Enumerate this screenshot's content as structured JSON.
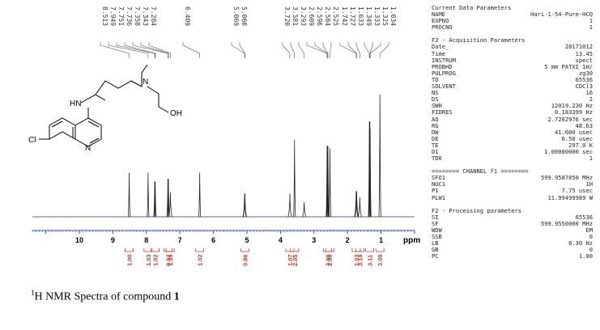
{
  "chart_data": {
    "type": "line",
    "xlabel": "ppm",
    "xlim": [
      11.4,
      0.0
    ],
    "x_ticks": [
      10,
      9,
      8,
      7,
      6,
      5,
      4,
      3,
      2,
      1
    ],
    "grid": false,
    "peak_labels": [
      "8.513",
      "7.949",
      "7.751",
      "7.736",
      "7.358",
      "7.343",
      "7.284",
      "6.409",
      "5.069",
      "5.060",
      "3.720",
      "3.581",
      "3.293",
      "2.609",
      "2.596",
      "2.584",
      "2.525",
      "1.742",
      "1.727",
      "1.633",
      "1.349",
      "1.333",
      "1.325",
      "1.034"
    ],
    "series": [
      {
        "x": [
          8.513,
          7.949,
          7.751,
          7.736,
          7.358,
          7.343,
          7.284,
          6.409,
          5.069,
          5.06,
          3.72,
          3.581,
          3.293,
          2.609,
          2.596,
          2.584,
          2.525,
          1.742,
          1.727,
          1.633,
          1.349,
          1.333,
          1.325,
          1.034
        ],
        "y": [
          0.36,
          0.36,
          0.29,
          0.29,
          0.31,
          0.31,
          0.2,
          0.36,
          0.19,
          0.19,
          0.19,
          0.63,
          0.12,
          0.58,
          0.58,
          0.58,
          0.56,
          0.21,
          0.21,
          0.16,
          0.78,
          0.78,
          0.72,
          1.0
        ]
      }
    ],
    "integrals": [
      {
        "x": 8.513,
        "label": "1.00"
      },
      {
        "x": 7.95,
        "label": "1.03"
      },
      {
        "x": 7.74,
        "label": "1.02"
      },
      {
        "x": 7.35,
        "label": "0.97"
      },
      {
        "x": 7.29,
        "label": "1.39"
      },
      {
        "x": 6.409,
        "label": "1.02"
      },
      {
        "x": 5.065,
        "label": "0.86"
      },
      {
        "x": 3.72,
        "label": "1.07"
      },
      {
        "x": 3.58,
        "label": "2.05"
      },
      {
        "x": 2.6,
        "label": "3.90"
      },
      {
        "x": 2.53,
        "label": "2.00"
      },
      {
        "x": 1.74,
        "label": "1.03"
      },
      {
        "x": 1.63,
        "label": "3.10"
      },
      {
        "x": 1.34,
        "label": "3.11"
      },
      {
        "x": 1.034,
        "label": "3.09"
      }
    ]
  },
  "structure": {
    "labels": {
      "hn": "HN",
      "n": "N",
      "oh": "OH",
      "cl": "Cl",
      "ring_n": "N"
    }
  },
  "params": {
    "current_header": "Current Data Parameters",
    "current": [
      {
        "key": "NAME",
        "value": "Hari-1-54-Pure-HCQ"
      },
      {
        "key": "EXPNO",
        "value": "1"
      },
      {
        "key": "PROCNO",
        "value": "1"
      }
    ],
    "acq_header": "F2 - Acquisition Parameters",
    "acq": [
      {
        "key": "Date_",
        "value": "20171012"
      },
      {
        "key": "Time",
        "value": "13.45"
      },
      {
        "key": "INSTRUM",
        "value": "spect"
      },
      {
        "key": "PROBHD",
        "value": "5 mm PATXI 1H/"
      },
      {
        "key": "PULPROG",
        "value": "zg30"
      },
      {
        "key": "TD",
        "value": "65536"
      },
      {
        "key": "SOLVENT",
        "value": "CDCl3"
      },
      {
        "key": "NS",
        "value": "16"
      },
      {
        "key": "DS",
        "value": "2"
      },
      {
        "key": "SWH",
        "value": "12019.230 Hz"
      },
      {
        "key": "FIDRES",
        "value": "0.183399 Hz"
      },
      {
        "key": "AQ",
        "value": "2.7262976 sec"
      },
      {
        "key": "RG",
        "value": "48.63"
      },
      {
        "key": "DW",
        "value": "41.600 usec"
      },
      {
        "key": "DE",
        "value": "6.50 usec"
      },
      {
        "key": "TE",
        "value": "297.0 K"
      },
      {
        "key": "D1",
        "value": "1.00000000 sec"
      },
      {
        "key": "TD0",
        "value": "1"
      }
    ],
    "channel_header": "======== CHANNEL f1 ========",
    "channel": [
      {
        "key": "SFO1",
        "value": "599.9587050 MHz"
      },
      {
        "key": "NUC1",
        "value": "1H"
      },
      {
        "key": "P1",
        "value": "7.75 usec"
      },
      {
        "key": "PLW1",
        "value": "11.99499989 W"
      }
    ],
    "proc_header": "F2 - Processing parameters",
    "proc": [
      {
        "key": "SI",
        "value": "65536"
      },
      {
        "key": "SF",
        "value": "599.9550000 MHz"
      },
      {
        "key": "WDW",
        "value": "EM"
      },
      {
        "key": "SSB",
        "value": "0"
      },
      {
        "key": "LB",
        "value": "0.30 Hz"
      },
      {
        "key": "GB",
        "value": "0"
      },
      {
        "key": "PC",
        "value": "1.00"
      }
    ]
  },
  "caption": {
    "sup": "1",
    "text": "H NMR Spectra of compound ",
    "bold": "1"
  }
}
